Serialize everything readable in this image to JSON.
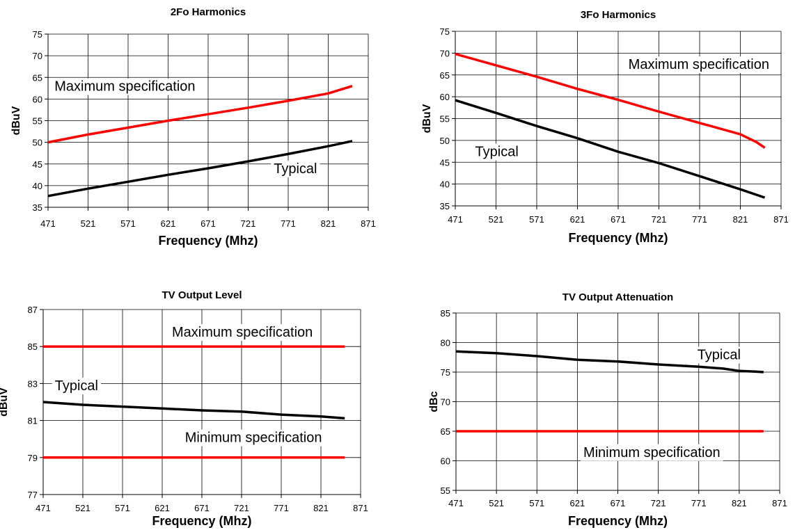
{
  "chart_data": [
    {
      "type": "line",
      "title": "2Fo Harmonics",
      "xlabel": "Frequency (Mhz)",
      "ylabel": "dBuV",
      "xlim": [
        471,
        871
      ],
      "ylim": [
        35,
        75
      ],
      "x_ticks": [
        471,
        521,
        571,
        621,
        671,
        721,
        771,
        821,
        871
      ],
      "y_ticks": [
        35,
        40,
        45,
        50,
        55,
        60,
        65,
        70,
        75
      ],
      "grid": true,
      "series": [
        {
          "name": "Maximum specification",
          "color": "#ff0000",
          "points": [
            [
              471,
              50
            ],
            [
              521,
              51.8
            ],
            [
              571,
              53.4
            ],
            [
              621,
              55
            ],
            [
              671,
              56.5
            ],
            [
              721,
              58
            ],
            [
              771,
              59.6
            ],
            [
              821,
              61.3
            ],
            [
              851,
              63
            ]
          ]
        },
        {
          "name": "Typical",
          "color": "#000000",
          "points": [
            [
              471,
              37.6
            ],
            [
              521,
              39.3
            ],
            [
              571,
              40.9
            ],
            [
              621,
              42.5
            ],
            [
              671,
              44
            ],
            [
              721,
              45.6
            ],
            [
              771,
              47.3
            ],
            [
              821,
              49.1
            ],
            [
              851,
              50.3
            ]
          ]
        }
      ],
      "annotations": [
        {
          "text": "Maximum specification",
          "x": 567,
          "y": 63
        },
        {
          "text": "Typical",
          "x": 780,
          "y": 44
        }
      ]
    },
    {
      "type": "line",
      "title": "3Fo Harmonics",
      "xlabel": "Frequency (Mhz)",
      "ylabel": "dBuV",
      "xlim": [
        471,
        871
      ],
      "ylim": [
        35,
        75
      ],
      "x_ticks": [
        471,
        521,
        571,
        621,
        671,
        721,
        771,
        821,
        871
      ],
      "y_ticks": [
        35,
        40,
        45,
        50,
        55,
        60,
        65,
        70,
        75
      ],
      "grid": true,
      "series": [
        {
          "name": "Maximum specification",
          "color": "#ff0000",
          "points": [
            [
              471,
              69.8
            ],
            [
              521,
              67.2
            ],
            [
              571,
              64.6
            ],
            [
              621,
              61.8
            ],
            [
              671,
              59.3
            ],
            [
              721,
              56.6
            ],
            [
              771,
              54
            ],
            [
              821,
              51.4
            ],
            [
              841,
              49.6
            ],
            [
              851,
              48.3
            ]
          ]
        },
        {
          "name": "Typical",
          "color": "#000000",
          "points": [
            [
              471,
              59.2
            ],
            [
              521,
              56.3
            ],
            [
              571,
              53.3
            ],
            [
              621,
              50.5
            ],
            [
              671,
              47.4
            ],
            [
              721,
              44.8
            ],
            [
              771,
              41.8
            ],
            [
              821,
              38.8
            ],
            [
              851,
              36.9
            ]
          ]
        }
      ],
      "annotations": [
        {
          "text": "Maximum specification",
          "x": 770,
          "y": 67.5
        },
        {
          "text": "Typical",
          "x": 522,
          "y": 47.5
        }
      ]
    },
    {
      "type": "line",
      "title": "TV Output Level",
      "xlabel": "Frequency (Mhz)",
      "ylabel": "dBuV",
      "xlim": [
        471,
        871
      ],
      "ylim": [
        77,
        87
      ],
      "x_ticks": [
        471,
        521,
        571,
        621,
        671,
        721,
        771,
        821,
        871
      ],
      "y_ticks": [
        77,
        79,
        81,
        83,
        85,
        87
      ],
      "grid": true,
      "series": [
        {
          "name": "Maximum specification",
          "color": "#ff0000",
          "points": [
            [
              471,
              85
            ],
            [
              851,
              85
            ]
          ]
        },
        {
          "name": "Minimum specification",
          "color": "#000000",
          "points": [
            [
              471,
              79
            ],
            [
              851,
              79
            ]
          ],
          "line_color": "#ff0000"
        },
        {
          "name": "Typical",
          "color": "#000000",
          "points": [
            [
              471,
              82
            ],
            [
              521,
              81.85
            ],
            [
              571,
              81.75
            ],
            [
              621,
              81.65
            ],
            [
              671,
              81.55
            ],
            [
              721,
              81.48
            ],
            [
              771,
              81.32
            ],
            [
              821,
              81.22
            ],
            [
              851,
              81.12
            ]
          ]
        }
      ],
      "annotations": [
        {
          "text": "Maximum specification",
          "x": 722,
          "y": 85.8
        },
        {
          "text": "Typical",
          "x": 513,
          "y": 82.9
        },
        {
          "text": "Minimum specification",
          "x": 736,
          "y": 80.1
        }
      ]
    },
    {
      "type": "line",
      "title": "TV Output Attenuation",
      "xlabel": "Frequency (Mhz)",
      "ylabel": "dBc",
      "xlim": [
        471,
        871
      ],
      "ylim": [
        55,
        85
      ],
      "x_ticks": [
        471,
        521,
        571,
        621,
        671,
        721,
        771,
        821,
        871
      ],
      "y_ticks": [
        55,
        60,
        65,
        70,
        75,
        80,
        85
      ],
      "grid": true,
      "series": [
        {
          "name": "Typical",
          "color": "#000000",
          "points": [
            [
              471,
              78.5
            ],
            [
              521,
              78.2
            ],
            [
              571,
              77.7
            ],
            [
              621,
              77.1
            ],
            [
              671,
              76.8
            ],
            [
              721,
              76.3
            ],
            [
              771,
              75.9
            ],
            [
              801,
              75.6
            ],
            [
              821,
              75.2
            ],
            [
              841,
              75.1
            ],
            [
              851,
              75
            ]
          ]
        },
        {
          "name": "Minimum specification",
          "color": "#ff0000",
          "points": [
            [
              471,
              65
            ],
            [
              851,
              65
            ]
          ]
        }
      ],
      "annotations": [
        {
          "text": "Typical",
          "x": 796,
          "y": 78
        },
        {
          "text": "Minimum specification",
          "x": 713,
          "y": 61.5
        }
      ]
    }
  ]
}
